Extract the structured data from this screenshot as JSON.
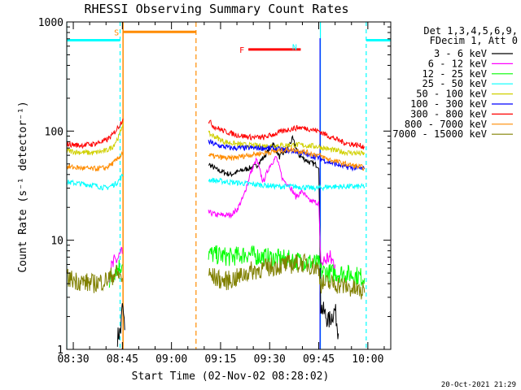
{
  "chart_data": {
    "type": "line",
    "title": "RHESSI Observing Summary Count Rates",
    "xlabel": "Start Time (02-Nov-02 08:28:02)",
    "ylabel": "Count Rate (s⁻¹ detector⁻¹)",
    "yscale": "log",
    "ylim": [
      1,
      1000
    ],
    "xlim_minutes": [
      0,
      99
    ],
    "x_ticks": [
      {
        "m": 2,
        "label": "08:30"
      },
      {
        "m": 17,
        "label": "08:45"
      },
      {
        "m": 32,
        "label": "09:00"
      },
      {
        "m": 47,
        "label": "09:15"
      },
      {
        "m": 62,
        "label": "09:30"
      },
      {
        "m": 77,
        "label": "09:45"
      },
      {
        "m": 92,
        "label": "10:00"
      }
    ],
    "y_ticks": [
      {
        "v": 1,
        "label": "1"
      },
      {
        "v": 10,
        "label": "10"
      },
      {
        "v": 100,
        "label": "100"
      },
      {
        "v": 1000,
        "label": "1000"
      }
    ],
    "legend_header": [
      "Det 1,3,4,5,6,9,",
      "FDecim 1, Att 0"
    ],
    "series": [
      {
        "name": "3 - 6 keV",
        "color": "#000000",
        "points": [
          [
            15.5,
            1.3
          ],
          [
            16.5,
            1.5
          ],
          [
            17,
            2.6
          ],
          [
            17.7,
            1.5
          ],
          [
            43.3,
            50
          ],
          [
            46,
            44
          ],
          [
            50,
            40
          ],
          [
            54,
            44
          ],
          [
            58,
            48
          ],
          [
            61,
            62
          ],
          [
            63,
            78
          ],
          [
            65,
            58
          ],
          [
            67,
            66
          ],
          [
            69,
            85
          ],
          [
            71,
            60
          ],
          [
            74,
            52
          ],
          [
            77,
            48
          ],
          [
            77.6,
            2.5
          ],
          [
            80,
            1.8
          ],
          [
            82,
            2.3
          ],
          [
            83,
            1.4
          ]
        ]
      },
      {
        "name": "6 - 12 keV",
        "color": "#ff00ff",
        "points": [
          [
            13,
            5.0
          ],
          [
            15,
            6.5
          ],
          [
            17,
            7.5
          ],
          [
            43.3,
            18
          ],
          [
            46,
            17
          ],
          [
            50,
            17
          ],
          [
            52,
            19
          ],
          [
            54,
            25
          ],
          [
            56,
            40
          ],
          [
            58,
            55
          ],
          [
            60,
            34
          ],
          [
            62,
            48
          ],
          [
            64,
            58
          ],
          [
            66,
            36
          ],
          [
            68,
            32
          ],
          [
            70,
            25
          ],
          [
            72,
            28
          ],
          [
            74,
            23
          ],
          [
            77,
            22
          ],
          [
            77.6,
            6.0
          ],
          [
            80,
            7.0
          ],
          [
            82,
            6.0
          ]
        ]
      },
      {
        "name": "12 - 25 keV",
        "color": "#00ff00",
        "points": [
          [
            13,
            4.3
          ],
          [
            15,
            5.5
          ],
          [
            17,
            6.0
          ],
          [
            43.3,
            7.5
          ],
          [
            46,
            7.3
          ],
          [
            50,
            7.0
          ],
          [
            55,
            7.5
          ],
          [
            60,
            7.0
          ],
          [
            65,
            6.8
          ],
          [
            70,
            6.5
          ],
          [
            75,
            6.3
          ],
          [
            77,
            6.0
          ],
          [
            77.6,
            5.3
          ],
          [
            80,
            5.0
          ],
          [
            84,
            5.0
          ],
          [
            88,
            4.8
          ],
          [
            91,
            4.5
          ]
        ]
      },
      {
        "name": "25 - 50 keV",
        "color": "#00ffff",
        "points": [
          [
            0,
            34
          ],
          [
            4,
            33
          ],
          [
            8,
            32
          ],
          [
            12,
            30
          ],
          [
            15,
            33
          ],
          [
            16.5,
            37
          ],
          [
            17.2,
            40
          ],
          [
            43.3,
            36
          ],
          [
            46,
            35
          ],
          [
            50,
            34
          ],
          [
            55,
            33
          ],
          [
            60,
            32
          ],
          [
            65,
            31
          ],
          [
            70,
            31
          ],
          [
            75,
            30
          ],
          [
            77,
            30
          ],
          [
            80,
            31
          ],
          [
            85,
            31
          ],
          [
            91,
            31
          ]
        ]
      },
      {
        "name": "50 - 100 keV",
        "color": "#d0d000",
        "points": [
          [
            0,
            66
          ],
          [
            4,
            64
          ],
          [
            8,
            63
          ],
          [
            12,
            66
          ],
          [
            14,
            72
          ],
          [
            16,
            90
          ],
          [
            17.2,
            120
          ],
          [
            43.3,
            95
          ],
          [
            45,
            90
          ],
          [
            48,
            80
          ],
          [
            52,
            76
          ],
          [
            56,
            74
          ],
          [
            60,
            73
          ],
          [
            65,
            74
          ],
          [
            70,
            75
          ],
          [
            75,
            73
          ],
          [
            77,
            72
          ],
          [
            80,
            68
          ],
          [
            85,
            64
          ],
          [
            91,
            62
          ]
        ]
      },
      {
        "name": "100 - 300 keV",
        "color": "#0000ff",
        "points": [
          [
            43.3,
            80
          ],
          [
            46,
            74
          ],
          [
            50,
            70
          ],
          [
            55,
            70
          ],
          [
            60,
            70
          ],
          [
            65,
            68
          ],
          [
            70,
            65
          ],
          [
            74,
            60
          ],
          [
            77,
            57
          ],
          [
            78,
            55
          ],
          [
            80,
            52
          ],
          [
            85,
            47
          ],
          [
            91,
            45
          ]
        ]
      },
      {
        "name": "300 - 800 keV",
        "color": "#ff0000",
        "points": [
          [
            0,
            76
          ],
          [
            4,
            74
          ],
          [
            8,
            76
          ],
          [
            12,
            82
          ],
          [
            14,
            92
          ],
          [
            16,
            112
          ],
          [
            17.2,
            130
          ],
          [
            43.3,
            125
          ],
          [
            45,
            110
          ],
          [
            48,
            100
          ],
          [
            52,
            92
          ],
          [
            56,
            88
          ],
          [
            60,
            87
          ],
          [
            64,
            95
          ],
          [
            68,
            104
          ],
          [
            71,
            108
          ],
          [
            74,
            105
          ],
          [
            77,
            100
          ],
          [
            80,
            90
          ],
          [
            85,
            78
          ],
          [
            91,
            72
          ]
        ]
      },
      {
        "name": "800 - 7000 keV",
        "color": "#ff8c00",
        "points": [
          [
            0,
            47
          ],
          [
            4,
            46
          ],
          [
            8,
            45
          ],
          [
            12,
            46
          ],
          [
            15,
            53
          ],
          [
            16.5,
            60
          ],
          [
            17.2,
            65
          ],
          [
            43.3,
            60
          ],
          [
            46,
            58
          ],
          [
            50,
            56
          ],
          [
            55,
            60
          ],
          [
            60,
            63
          ],
          [
            65,
            66
          ],
          [
            68,
            68
          ],
          [
            70,
            67
          ],
          [
            75,
            62
          ],
          [
            77,
            60
          ],
          [
            80,
            55
          ],
          [
            85,
            50
          ],
          [
            91,
            46
          ]
        ]
      },
      {
        "name": "7000 - 15000 keV",
        "color": "#808000",
        "points": [
          [
            0,
            4.5
          ],
          [
            4,
            4.2
          ],
          [
            8,
            4.0
          ],
          [
            12,
            4.3
          ],
          [
            15,
            5.0
          ],
          [
            17,
            4.5
          ],
          [
            43.3,
            4.8
          ],
          [
            48,
            4.2
          ],
          [
            52,
            4.5
          ],
          [
            56,
            5.2
          ],
          [
            60,
            5.5
          ],
          [
            64,
            5.8
          ],
          [
            68,
            6.0
          ],
          [
            72,
            6.2
          ],
          [
            75,
            5.8
          ],
          [
            77,
            5.5
          ],
          [
            77.6,
            4.0
          ],
          [
            82,
            4.0
          ],
          [
            86,
            3.7
          ],
          [
            91,
            3.3
          ]
        ]
      }
    ],
    "flags": [
      {
        "label": "S",
        "color": "#ff8c00",
        "start_m": 17.2,
        "end_m": 39.5,
        "level": 810
      },
      {
        "label": "F",
        "color": "#ff0000",
        "start_m": 55.5,
        "end_m": 71.5,
        "level": 560
      },
      {
        "label": "N",
        "color": "#00ffff",
        "start_m": 91.5,
        "end_m": 99,
        "level": 680
      },
      {
        "label": "",
        "color": "#00ffff",
        "start_m": 0,
        "end_m": 16.3,
        "level": 680
      }
    ],
    "night_lines_dashed": [
      16.3,
      91.5
    ],
    "night_lines_solid": [
      0,
      77.5
    ],
    "saa_lines_solid": [
      17.2
    ],
    "saa_lines_dashed": [
      39.5
    ],
    "blue_line_m": 77.4,
    "timestamp": "20-Oct-2021 21:29"
  }
}
